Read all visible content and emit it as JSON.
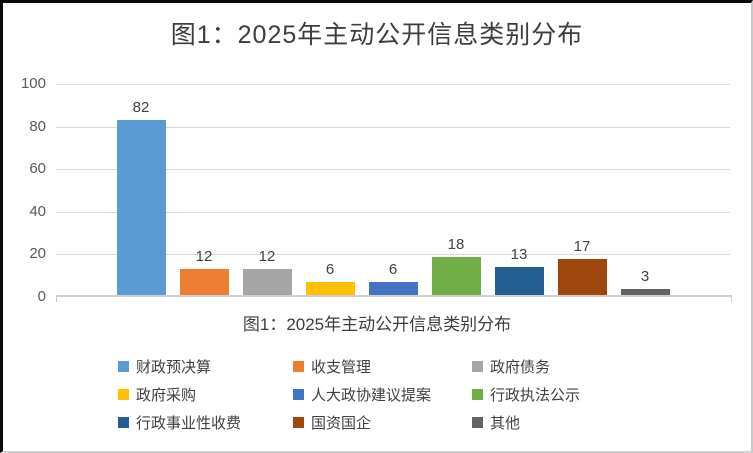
{
  "chart_data": {
    "type": "bar",
    "title": "图1：2025年主动公开信息类别分布",
    "category_label": "图1：2025年主动公开信息类别分布",
    "series": [
      {
        "name": "财政预决算",
        "value": 82,
        "color": "#5B9BD5"
      },
      {
        "name": "收支管理",
        "value": 12,
        "color": "#ED7D31"
      },
      {
        "name": "政府债务",
        "value": 12,
        "color": "#A5A5A5"
      },
      {
        "name": "政府采购",
        "value": 6,
        "color": "#FFC000"
      },
      {
        "name": "人大政协建议提案",
        "value": 6,
        "color": "#4472C4"
      },
      {
        "name": "行政执法公示",
        "value": 18,
        "color": "#70AD47"
      },
      {
        "name": "行政事业性收费",
        "value": 13,
        "color": "#255E91"
      },
      {
        "name": "国资国企",
        "value": 17,
        "color": "#9E480E"
      },
      {
        "name": "其他",
        "value": 3,
        "color": "#636363"
      }
    ],
    "y_axis": {
      "min": 0,
      "max": 100,
      "ticks": [
        0,
        20,
        40,
        60,
        80,
        100
      ]
    },
    "grid": true,
    "data_labels": true,
    "legend_position": "bottom",
    "legend_columns": 3,
    "colors": {
      "gridline": "#d9d9d9",
      "axis_text": "#595959",
      "label_text": "#404040",
      "title_text": "#3d3d3d"
    }
  }
}
